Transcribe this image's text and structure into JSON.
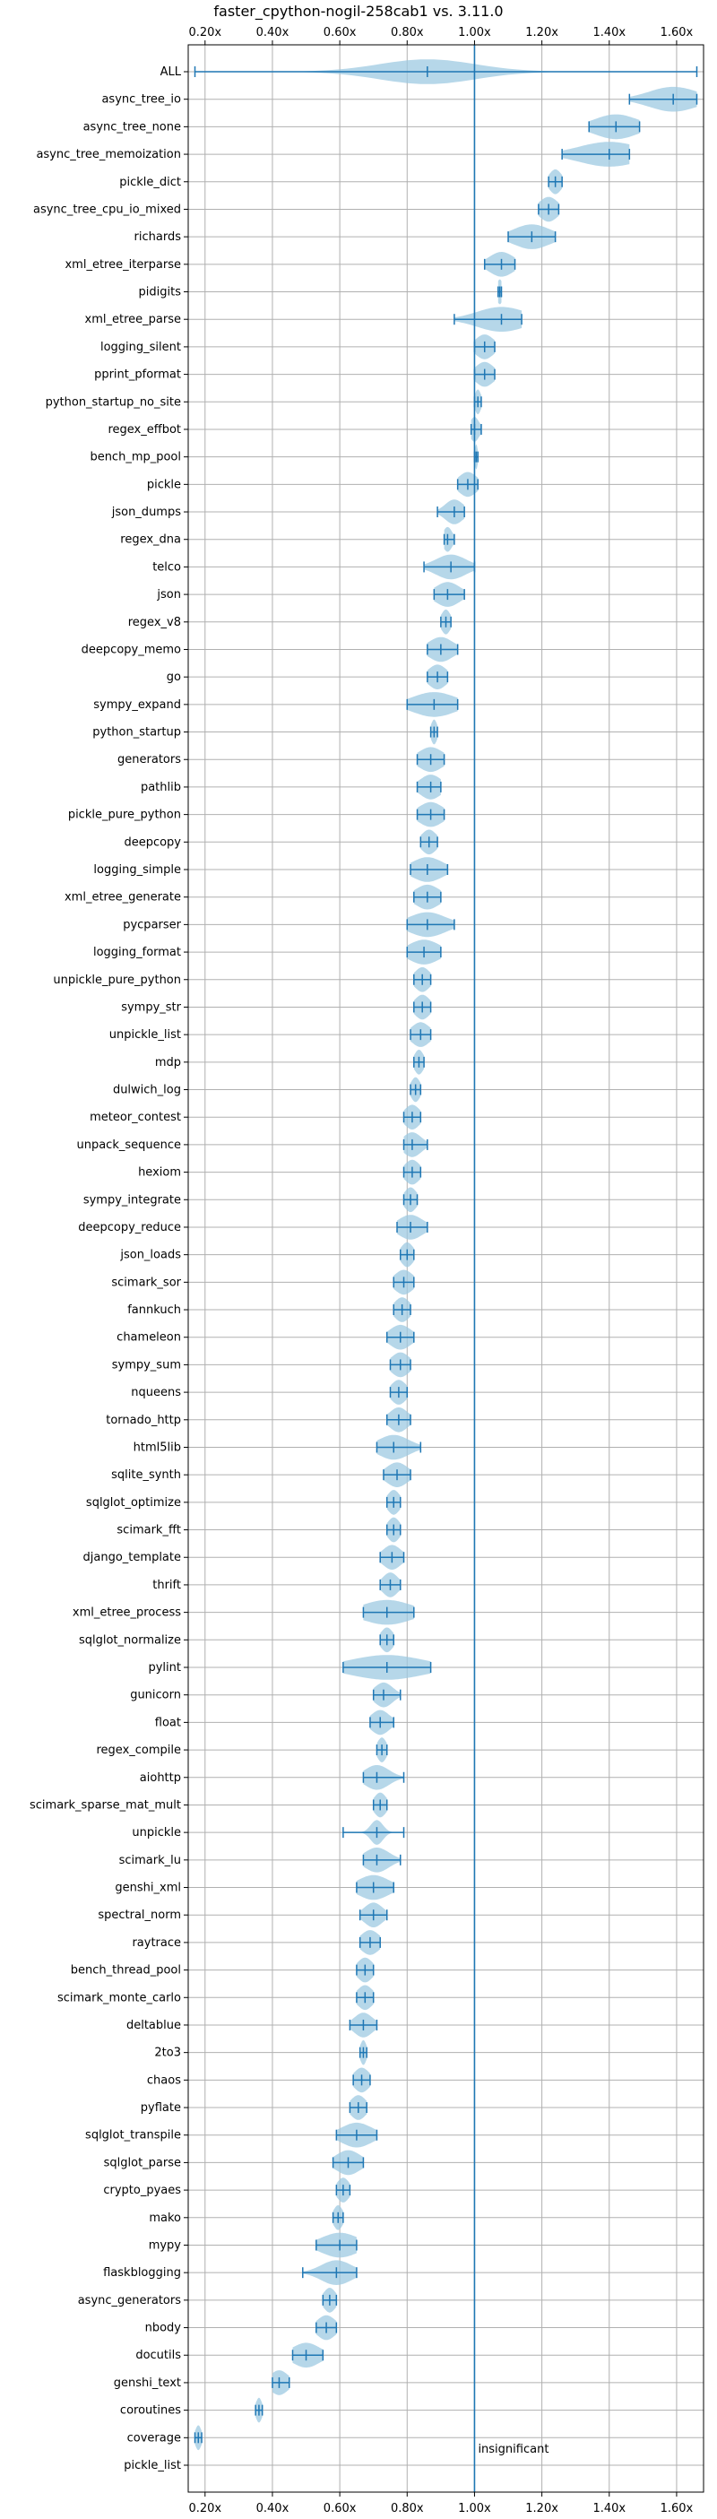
{
  "chart_data": {
    "type": "violin",
    "title": "faster_cpython-nogil-258cab1 vs. 3.11.0",
    "xlabel": "",
    "ylabel": "",
    "xlim": [
      0.15,
      1.68
    ],
    "xticks": [
      "0.20x",
      "0.40x",
      "0.60x",
      "0.80x",
      "1.00x",
      "1.20x",
      "1.40x",
      "1.60x"
    ],
    "xtick_values": [
      0.2,
      0.4,
      0.6,
      0.8,
      1.0,
      1.2,
      1.4,
      1.6
    ],
    "xticks_top": true,
    "xticks_bottom": true,
    "grid": true,
    "reference_line": 1.0,
    "colors": {
      "line": "#1f77b4",
      "violin": "#9ecae1",
      "grid": "#b0b0b0"
    },
    "annotation": "insignificant",
    "benchmarks": [
      {
        "name": "ALL",
        "min": 0.17,
        "max": 1.66,
        "median": 0.86,
        "spread": 0.16
      },
      {
        "name": "async_tree_io",
        "min": 1.46,
        "max": 1.66,
        "median": 1.59,
        "spread": 0.08
      },
      {
        "name": "async_tree_none",
        "min": 1.34,
        "max": 1.49,
        "median": 1.42,
        "spread": 0.07
      },
      {
        "name": "async_tree_memoization",
        "min": 1.26,
        "max": 1.46,
        "median": 1.4,
        "spread": 0.1
      },
      {
        "name": "pickle_dict",
        "min": 1.22,
        "max": 1.26,
        "median": 1.24,
        "spread": 0.02
      },
      {
        "name": "async_tree_cpu_io_mixed",
        "min": 1.19,
        "max": 1.25,
        "median": 1.22,
        "spread": 0.03
      },
      {
        "name": "richards",
        "min": 1.1,
        "max": 1.24,
        "median": 1.17,
        "spread": 0.06
      },
      {
        "name": "xml_etree_iterparse",
        "min": 1.03,
        "max": 1.12,
        "median": 1.08,
        "spread": 0.04
      },
      {
        "name": "pidigits",
        "min": 1.07,
        "max": 1.08,
        "median": 1.075,
        "spread": 0.01
      },
      {
        "name": "xml_etree_parse",
        "min": 0.94,
        "max": 1.14,
        "median": 1.08,
        "spread": 0.08
      },
      {
        "name": "logging_silent",
        "min": 1.0,
        "max": 1.06,
        "median": 1.03,
        "spread": 0.03
      },
      {
        "name": "pprint_pformat",
        "min": 1.0,
        "max": 1.06,
        "median": 1.03,
        "spread": 0.03
      },
      {
        "name": "python_startup_no_site",
        "min": 1.0,
        "max": 1.02,
        "median": 1.01,
        "spread": 0.01
      },
      {
        "name": "regex_effbot",
        "min": 0.99,
        "max": 1.02,
        "median": 1.0,
        "spread": 0.015
      },
      {
        "name": "bench_mp_pool",
        "min": 1.0,
        "max": 1.01,
        "median": 1.005,
        "spread": 0.005
      },
      {
        "name": "pickle",
        "min": 0.95,
        "max": 1.01,
        "median": 0.98,
        "spread": 0.03
      },
      {
        "name": "json_dumps",
        "min": 0.89,
        "max": 0.97,
        "median": 0.94,
        "spread": 0.03
      },
      {
        "name": "regex_dna",
        "min": 0.91,
        "max": 0.94,
        "median": 0.92,
        "spread": 0.015
      },
      {
        "name": "telco",
        "min": 0.85,
        "max": 1.0,
        "median": 0.93,
        "spread": 0.05
      },
      {
        "name": "json",
        "min": 0.88,
        "max": 0.97,
        "median": 0.92,
        "spread": 0.04
      },
      {
        "name": "regex_v8",
        "min": 0.9,
        "max": 0.93,
        "median": 0.915,
        "spread": 0.015
      },
      {
        "name": "deepcopy_memo",
        "min": 0.86,
        "max": 0.95,
        "median": 0.9,
        "spread": 0.04
      },
      {
        "name": "go",
        "min": 0.86,
        "max": 0.92,
        "median": 0.89,
        "spread": 0.03
      },
      {
        "name": "sympy_expand",
        "min": 0.8,
        "max": 0.95,
        "median": 0.88,
        "spread": 0.07
      },
      {
        "name": "python_startup",
        "min": 0.87,
        "max": 0.89,
        "median": 0.88,
        "spread": 0.01
      },
      {
        "name": "generators",
        "min": 0.83,
        "max": 0.91,
        "median": 0.87,
        "spread": 0.04
      },
      {
        "name": "pathlib",
        "min": 0.83,
        "max": 0.9,
        "median": 0.87,
        "spread": 0.035
      },
      {
        "name": "pickle_pure_python",
        "min": 0.83,
        "max": 0.91,
        "median": 0.87,
        "spread": 0.04
      },
      {
        "name": "deepcopy",
        "min": 0.84,
        "max": 0.89,
        "median": 0.865,
        "spread": 0.025
      },
      {
        "name": "logging_simple",
        "min": 0.81,
        "max": 0.92,
        "median": 0.86,
        "spread": 0.05
      },
      {
        "name": "xml_etree_generate",
        "min": 0.82,
        "max": 0.9,
        "median": 0.86,
        "spread": 0.04
      },
      {
        "name": "pycparser",
        "min": 0.8,
        "max": 0.94,
        "median": 0.86,
        "spread": 0.06
      },
      {
        "name": "logging_format",
        "min": 0.8,
        "max": 0.9,
        "median": 0.85,
        "spread": 0.05
      },
      {
        "name": "unpickle_pure_python",
        "min": 0.82,
        "max": 0.87,
        "median": 0.845,
        "spread": 0.025
      },
      {
        "name": "sympy_str",
        "min": 0.82,
        "max": 0.87,
        "median": 0.845,
        "spread": 0.025
      },
      {
        "name": "unpickle_list",
        "min": 0.81,
        "max": 0.87,
        "median": 0.84,
        "spread": 0.03
      },
      {
        "name": "mdp",
        "min": 0.82,
        "max": 0.85,
        "median": 0.835,
        "spread": 0.015
      },
      {
        "name": "dulwich_log",
        "min": 0.81,
        "max": 0.84,
        "median": 0.825,
        "spread": 0.015
      },
      {
        "name": "meteor_contest",
        "min": 0.79,
        "max": 0.84,
        "median": 0.815,
        "spread": 0.025
      },
      {
        "name": "unpack_sequence",
        "min": 0.79,
        "max": 0.86,
        "median": 0.815,
        "spread": 0.03
      },
      {
        "name": "hexiom",
        "min": 0.79,
        "max": 0.84,
        "median": 0.815,
        "spread": 0.025
      },
      {
        "name": "sympy_integrate",
        "min": 0.79,
        "max": 0.83,
        "median": 0.81,
        "spread": 0.02
      },
      {
        "name": "deepcopy_reduce",
        "min": 0.77,
        "max": 0.86,
        "median": 0.81,
        "spread": 0.04
      },
      {
        "name": "json_loads",
        "min": 0.78,
        "max": 0.82,
        "median": 0.8,
        "spread": 0.02
      },
      {
        "name": "scimark_sor",
        "min": 0.76,
        "max": 0.82,
        "median": 0.79,
        "spread": 0.03
      },
      {
        "name": "fannkuch",
        "min": 0.76,
        "max": 0.81,
        "median": 0.785,
        "spread": 0.025
      },
      {
        "name": "chameleon",
        "min": 0.74,
        "max": 0.82,
        "median": 0.78,
        "spread": 0.035
      },
      {
        "name": "sympy_sum",
        "min": 0.75,
        "max": 0.81,
        "median": 0.78,
        "spread": 0.03
      },
      {
        "name": "nqueens",
        "min": 0.75,
        "max": 0.8,
        "median": 0.775,
        "spread": 0.025
      },
      {
        "name": "tornado_http",
        "min": 0.74,
        "max": 0.81,
        "median": 0.775,
        "spread": 0.03
      },
      {
        "name": "html5lib",
        "min": 0.71,
        "max": 0.84,
        "median": 0.76,
        "spread": 0.05
      },
      {
        "name": "sqlite_synth",
        "min": 0.73,
        "max": 0.81,
        "median": 0.77,
        "spread": 0.035
      },
      {
        "name": "sqlglot_optimize",
        "min": 0.74,
        "max": 0.78,
        "median": 0.76,
        "spread": 0.02
      },
      {
        "name": "scimark_fft",
        "min": 0.74,
        "max": 0.78,
        "median": 0.76,
        "spread": 0.02
      },
      {
        "name": "django_template",
        "min": 0.72,
        "max": 0.79,
        "median": 0.755,
        "spread": 0.03
      },
      {
        "name": "thrift",
        "min": 0.72,
        "max": 0.78,
        "median": 0.75,
        "spread": 0.025
      },
      {
        "name": "xml_etree_process",
        "min": 0.67,
        "max": 0.82,
        "median": 0.74,
        "spread": 0.08
      },
      {
        "name": "sqlglot_normalize",
        "min": 0.72,
        "max": 0.76,
        "median": 0.74,
        "spread": 0.02
      },
      {
        "name": "pylint",
        "min": 0.61,
        "max": 0.87,
        "median": 0.74,
        "spread": 0.12
      },
      {
        "name": "gunicorn",
        "min": 0.7,
        "max": 0.78,
        "median": 0.73,
        "spread": 0.03
      },
      {
        "name": "float",
        "min": 0.69,
        "max": 0.76,
        "median": 0.72,
        "spread": 0.03
      },
      {
        "name": "regex_compile",
        "min": 0.71,
        "max": 0.74,
        "median": 0.725,
        "spread": 0.015
      },
      {
        "name": "aiohttp",
        "min": 0.67,
        "max": 0.79,
        "median": 0.71,
        "spread": 0.04
      },
      {
        "name": "scimark_sparse_mat_mult",
        "min": 0.7,
        "max": 0.74,
        "median": 0.72,
        "spread": 0.02
      },
      {
        "name": "unpickle",
        "min": 0.61,
        "max": 0.79,
        "median": 0.71,
        "spread": 0.02
      },
      {
        "name": "scimark_lu",
        "min": 0.67,
        "max": 0.78,
        "median": 0.71,
        "spread": 0.04
      },
      {
        "name": "genshi_xml",
        "min": 0.65,
        "max": 0.76,
        "median": 0.7,
        "spread": 0.05
      },
      {
        "name": "spectral_norm",
        "min": 0.66,
        "max": 0.74,
        "median": 0.7,
        "spread": 0.03
      },
      {
        "name": "raytrace",
        "min": 0.66,
        "max": 0.72,
        "median": 0.69,
        "spread": 0.03
      },
      {
        "name": "bench_thread_pool",
        "min": 0.65,
        "max": 0.7,
        "median": 0.675,
        "spread": 0.025
      },
      {
        "name": "scimark_monte_carlo",
        "min": 0.65,
        "max": 0.7,
        "median": 0.675,
        "spread": 0.025
      },
      {
        "name": "deltablue",
        "min": 0.63,
        "max": 0.71,
        "median": 0.67,
        "spread": 0.03
      },
      {
        "name": "2to3",
        "min": 0.66,
        "max": 0.68,
        "median": 0.67,
        "spread": 0.01
      },
      {
        "name": "chaos",
        "min": 0.64,
        "max": 0.69,
        "median": 0.665,
        "spread": 0.025
      },
      {
        "name": "pyflate",
        "min": 0.63,
        "max": 0.68,
        "median": 0.655,
        "spread": 0.025
      },
      {
        "name": "sqlglot_transpile",
        "min": 0.59,
        "max": 0.71,
        "median": 0.65,
        "spread": 0.05
      },
      {
        "name": "sqlglot_parse",
        "min": 0.58,
        "max": 0.67,
        "median": 0.625,
        "spread": 0.04
      },
      {
        "name": "crypto_pyaes",
        "min": 0.59,
        "max": 0.63,
        "median": 0.61,
        "spread": 0.02
      },
      {
        "name": "mako",
        "min": 0.58,
        "max": 0.61,
        "median": 0.595,
        "spread": 0.015
      },
      {
        "name": "mypy",
        "min": 0.53,
        "max": 0.65,
        "median": 0.6,
        "spread": 0.06
      },
      {
        "name": "flaskblogging",
        "min": 0.49,
        "max": 0.65,
        "median": 0.59,
        "spread": 0.05
      },
      {
        "name": "async_generators",
        "min": 0.55,
        "max": 0.59,
        "median": 0.57,
        "spread": 0.02
      },
      {
        "name": "nbody",
        "min": 0.53,
        "max": 0.59,
        "median": 0.56,
        "spread": 0.03
      },
      {
        "name": "docutils",
        "min": 0.46,
        "max": 0.55,
        "median": 0.5,
        "spread": 0.045
      },
      {
        "name": "genshi_text",
        "min": 0.4,
        "max": 0.45,
        "median": 0.42,
        "spread": 0.03
      },
      {
        "name": "coroutines",
        "min": 0.35,
        "max": 0.37,
        "median": 0.36,
        "spread": 0.01
      },
      {
        "name": "coverage",
        "min": 0.17,
        "max": 0.19,
        "median": 0.18,
        "spread": 0.01
      },
      {
        "name": "pickle_list",
        "min": null,
        "max": null,
        "median": null,
        "spread": 0
      }
    ]
  }
}
